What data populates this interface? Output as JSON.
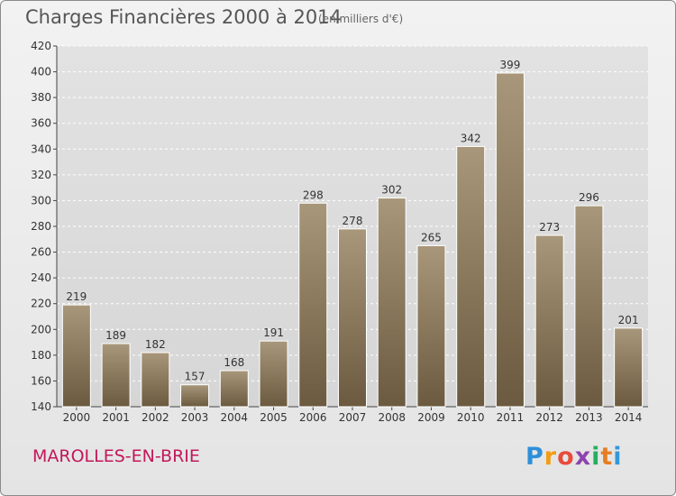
{
  "header": {
    "title": "Charges Financières 2000 à 2014",
    "subtitle": "(en milliers d'€)"
  },
  "footer": {
    "commune": "MAROLLES-EN-BRIE",
    "brand_letters": [
      "P",
      "r",
      "o",
      "x",
      "i",
      "t",
      "i"
    ],
    "brand_colors": [
      "#2f8fd8",
      "#f39c12",
      "#e74c3c",
      "#8e44ad",
      "#27ae60",
      "#e67e22",
      "#3498db"
    ]
  },
  "chart_data": {
    "type": "bar",
    "title": "Charges Financières 2000 à 2014",
    "subtitle": "(en milliers d'€)",
    "categories": [
      "2000",
      "2001",
      "2002",
      "2003",
      "2004",
      "2005",
      "2006",
      "2007",
      "2008",
      "2009",
      "2010",
      "2011",
      "2012",
      "2013",
      "2014"
    ],
    "values": [
      219,
      189,
      182,
      157,
      168,
      191,
      298,
      278,
      302,
      265,
      342,
      399,
      273,
      296,
      201
    ],
    "ylim": [
      140,
      420
    ],
    "yticks": [
      140,
      160,
      180,
      200,
      220,
      240,
      260,
      280,
      300,
      320,
      340,
      360,
      380,
      400,
      420
    ],
    "grid": true,
    "bar_color_top": "#a8977a",
    "bar_color_bottom": "#6b5a3f"
  }
}
